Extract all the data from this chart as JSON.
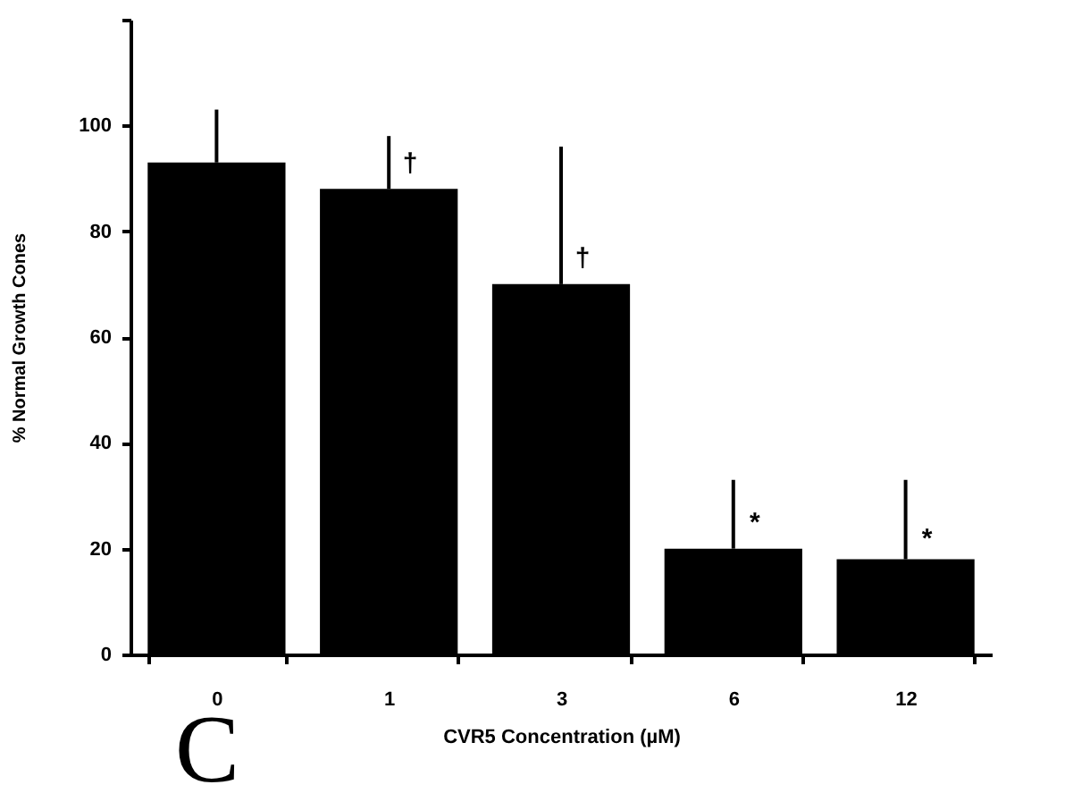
{
  "chart_data": {
    "type": "bar",
    "xlabel": "CVR5 Concentration (µM)",
    "ylabel": "% Normal Growth Cones",
    "categories": [
      "0",
      "1",
      "3",
      "6",
      "12"
    ],
    "values": [
      93,
      88,
      70,
      20,
      18
    ],
    "errors": [
      [
        93,
        103
      ],
      [
        88,
        98
      ],
      [
        70,
        96
      ],
      [
        20,
        33
      ],
      [
        18,
        33
      ]
    ],
    "color": "#000000",
    "ylim": [
      0,
      120
    ],
    "yticks": [
      0,
      20,
      40,
      60,
      80,
      100,
      {
        "value": 120,
        "label": null
      }
    ],
    "grid": false,
    "annotations": [
      {
        "text": "†",
        "x": "1",
        "y": 93
      },
      {
        "text": "†",
        "x": "3",
        "y": 75
      },
      {
        "text": "*",
        "x": "6",
        "y": 25
      },
      {
        "text": "*",
        "x": "12",
        "y": 22
      },
      "C"
    ]
  }
}
